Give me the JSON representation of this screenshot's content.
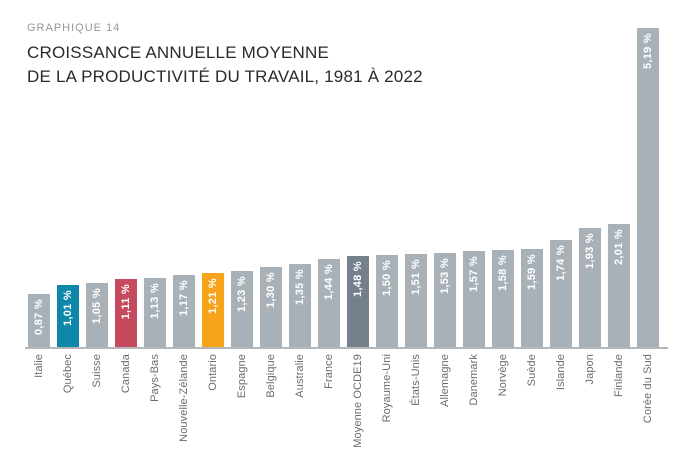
{
  "header": {
    "kicker": "GRAPHIQUE 14",
    "title_line1": "CROISSANCE ANNUELLE MOYENNE",
    "title_line2": "DE LA PRODUCTIVITÉ DU TRAVAIL, 1981 À 2022"
  },
  "palette": {
    "default": "#a9b1b8",
    "quebec_blue": "#0f87a8",
    "canada_red": "#c64a5e",
    "ontario_orange": "#f8a41b",
    "ocde_dark": "#74808c",
    "axis_line": "#b4b6b8",
    "value_label_text": "#ffffff",
    "category_label_text": "#6b6c6e"
  },
  "chart_data": {
    "type": "bar",
    "kicker": "GRAPHIQUE 14",
    "title": "CROISSANCE ANNUELLE MOYENNE DE LA PRODUCTIVITÉ DU TRAVAIL, 1981 À 2022",
    "xlabel": "",
    "ylabel": "",
    "ylim": [
      0,
      5.19
    ],
    "grid": false,
    "legend": false,
    "value_label_rotation": "vertical-bottom-to-top",
    "category_label_rotation": "vertical-bottom-to-top",
    "categories": [
      "Italie",
      "Québec",
      "Suisse",
      "Canada",
      "Pays-Bas",
      "Nouvelle-Zélande",
      "Ontario",
      "Espagne",
      "Belgique",
      "Australie",
      "France",
      "Moyenne OCDE19",
      "Royaume-Uni",
      "États-Unis",
      "Allemagne",
      "Danemark",
      "Norvège",
      "Suède",
      "Islande",
      "Japon",
      "Finlande",
      "Corée du Sud"
    ],
    "values": [
      0.87,
      1.01,
      1.05,
      1.11,
      1.13,
      1.17,
      1.21,
      1.23,
      1.3,
      1.35,
      1.44,
      1.48,
      1.5,
      1.51,
      1.53,
      1.57,
      1.58,
      1.59,
      1.74,
      1.93,
      2.01,
      5.19
    ],
    "bars": [
      {
        "category": "Italie",
        "value": 0.87,
        "value_label": "0,87 %",
        "color_role": "default"
      },
      {
        "category": "Québec",
        "value": 1.01,
        "value_label": "1,01 %",
        "color_role": "quebec_blue"
      },
      {
        "category": "Suisse",
        "value": 1.05,
        "value_label": "1,05 %",
        "color_role": "default"
      },
      {
        "category": "Canada",
        "value": 1.11,
        "value_label": "1,11 %",
        "color_role": "canada_red"
      },
      {
        "category": "Pays-Bas",
        "value": 1.13,
        "value_label": "1,13 %",
        "color_role": "default"
      },
      {
        "category": "Nouvelle-Zélande",
        "value": 1.17,
        "value_label": "1,17 %",
        "color_role": "default"
      },
      {
        "category": "Ontario",
        "value": 1.21,
        "value_label": "1,21 %",
        "color_role": "ontario_orange"
      },
      {
        "category": "Espagne",
        "value": 1.23,
        "value_label": "1,23 %",
        "color_role": "default"
      },
      {
        "category": "Belgique",
        "value": 1.3,
        "value_label": "1,30 %",
        "color_role": "default"
      },
      {
        "category": "Australie",
        "value": 1.35,
        "value_label": "1,35 %",
        "color_role": "default"
      },
      {
        "category": "France",
        "value": 1.44,
        "value_label": "1,44 %",
        "color_role": "default"
      },
      {
        "category": "Moyenne OCDE19",
        "value": 1.48,
        "value_label": "1,48 %",
        "color_role": "ocde_dark"
      },
      {
        "category": "Royaume-Uni",
        "value": 1.5,
        "value_label": "1,50 %",
        "color_role": "default"
      },
      {
        "category": "États-Unis",
        "value": 1.51,
        "value_label": "1,51 %",
        "color_role": "default"
      },
      {
        "category": "Allemagne",
        "value": 1.53,
        "value_label": "1,53 %",
        "color_role": "default"
      },
      {
        "category": "Danemark",
        "value": 1.57,
        "value_label": "1,57 %",
        "color_role": "default"
      },
      {
        "category": "Norvège",
        "value": 1.58,
        "value_label": "1,58 %",
        "color_role": "default"
      },
      {
        "category": "Suède",
        "value": 1.59,
        "value_label": "1,59 %",
        "color_role": "default"
      },
      {
        "category": "Islande",
        "value": 1.74,
        "value_label": "1,74 %",
        "color_role": "default"
      },
      {
        "category": "Japon",
        "value": 1.93,
        "value_label": "1,93 %",
        "color_role": "default"
      },
      {
        "category": "Finlande",
        "value": 2.01,
        "value_label": "2,01 %",
        "color_role": "default"
      },
      {
        "category": "Corée du Sud",
        "value": 5.19,
        "value_label": "5,19 %",
        "color_role": "default"
      }
    ]
  }
}
